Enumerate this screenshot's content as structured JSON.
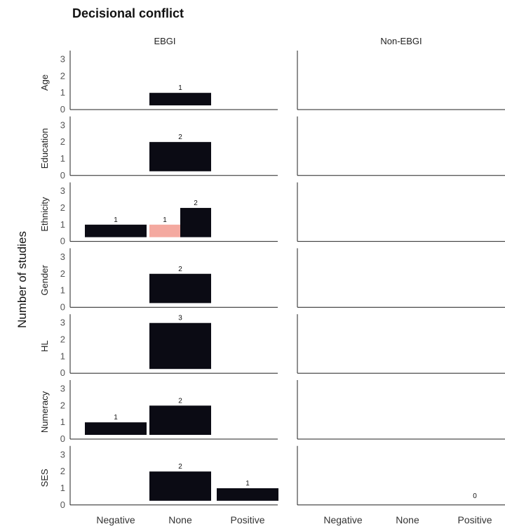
{
  "chart_data": {
    "type": "bar",
    "title": "Decisional conflict",
    "ylabel": "Number of studies",
    "columns": [
      "EBGI",
      "Non-EBGI"
    ],
    "rows": [
      "Age",
      "Education",
      "Ethnicity",
      "Gender",
      "HL",
      "Numeracy",
      "SES"
    ],
    "categories": [
      "Negative",
      "None",
      "Positive"
    ],
    "yticks": [
      0,
      1,
      2,
      3
    ],
    "ylim": [
      0,
      3.4
    ],
    "colors": {
      "default": "#0b0b14",
      "highlight": "#f4a9a0"
    },
    "bars": [
      {
        "column": "EBGI",
        "row": "Age",
        "category": "None",
        "value": 1,
        "label": "1"
      },
      {
        "column": "EBGI",
        "row": "Education",
        "category": "None",
        "value": 2,
        "label": "2"
      },
      {
        "column": "EBGI",
        "row": "Ethnicity",
        "category": "Negative",
        "value": 1,
        "label": "1"
      },
      {
        "column": "EBGI",
        "row": "Ethnicity",
        "category": "None",
        "value": 1,
        "label": "1",
        "dodge": "left",
        "color": "highlight"
      },
      {
        "column": "EBGI",
        "row": "Ethnicity",
        "category": "None",
        "value": 2,
        "label": "2",
        "dodge": "right"
      },
      {
        "column": "EBGI",
        "row": "Gender",
        "category": "None",
        "value": 2,
        "label": "2"
      },
      {
        "column": "EBGI",
        "row": "HL",
        "category": "None",
        "value": 3,
        "label": "3"
      },
      {
        "column": "EBGI",
        "row": "Numeracy",
        "category": "Negative",
        "value": 1,
        "label": "1"
      },
      {
        "column": "EBGI",
        "row": "Numeracy",
        "category": "None",
        "value": 2,
        "label": "2"
      },
      {
        "column": "EBGI",
        "row": "SES",
        "category": "None",
        "value": 2,
        "label": "2"
      },
      {
        "column": "EBGI",
        "row": "SES",
        "category": "Positive",
        "value": 1,
        "label": "1"
      },
      {
        "column": "Non-EBGI",
        "row": "SES",
        "category": "Positive",
        "value": 0,
        "label": "0"
      }
    ],
    "grid": false,
    "legend": "none"
  }
}
